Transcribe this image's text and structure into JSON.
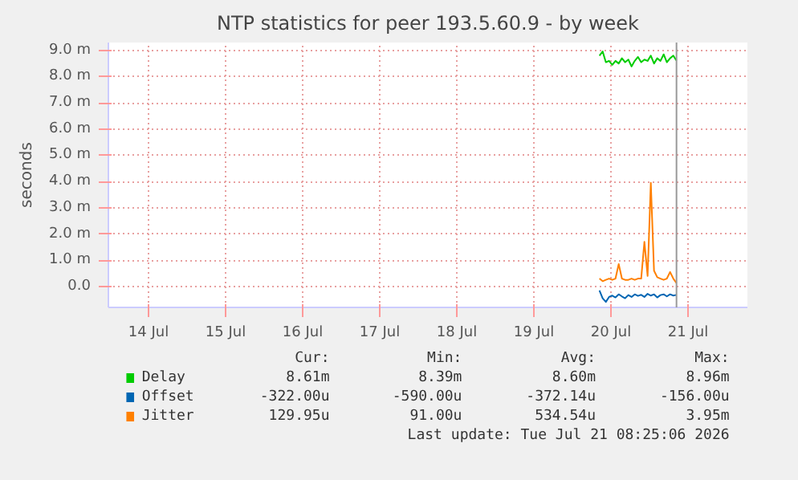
{
  "chart_data": {
    "type": "line",
    "title": "NTP statistics for peer 193.5.60.9 - by week",
    "ylabel": "seconds",
    "x": [
      "2026-07-20T08:25",
      "2026-07-20T09:25",
      "2026-07-20T10:25",
      "2026-07-20T11:25",
      "2026-07-20T12:25",
      "2026-07-20T13:25",
      "2026-07-20T14:25",
      "2026-07-20T15:25",
      "2026-07-20T16:25",
      "2026-07-20T17:25",
      "2026-07-20T18:25",
      "2026-07-20T19:25",
      "2026-07-20T20:25",
      "2026-07-20T21:25",
      "2026-07-20T22:25",
      "2026-07-20T23:25",
      "2026-07-21T00:25",
      "2026-07-21T01:25",
      "2026-07-21T02:25",
      "2026-07-21T03:25",
      "2026-07-21T04:25",
      "2026-07-21T05:25",
      "2026-07-21T06:25",
      "2026-07-21T07:25",
      "2026-07-21T08:25"
    ],
    "series": [
      {
        "name": "Delay",
        "color": "#00cc00",
        "values": [
          8.8,
          8.96,
          8.55,
          8.6,
          8.45,
          8.6,
          8.5,
          8.7,
          8.55,
          8.65,
          8.39,
          8.6,
          8.75,
          8.55,
          8.65,
          8.6,
          8.8,
          8.5,
          8.7,
          8.6,
          8.85,
          8.55,
          8.7,
          8.8,
          8.61
        ]
      },
      {
        "name": "Offset",
        "color": "#0066b3",
        "values": [
          -0.156,
          -0.45,
          -0.59,
          -0.4,
          -0.35,
          -0.42,
          -0.3,
          -0.38,
          -0.45,
          -0.33,
          -0.4,
          -0.3,
          -0.36,
          -0.32,
          -0.4,
          -0.28,
          -0.35,
          -0.3,
          -0.42,
          -0.33,
          -0.3,
          -0.38,
          -0.3,
          -0.35,
          -0.322
        ]
      },
      {
        "name": "Jitter",
        "color": "#ff8000",
        "values": [
          0.3,
          0.2,
          0.25,
          0.3,
          0.25,
          0.3,
          0.85,
          0.3,
          0.25,
          0.25,
          0.3,
          0.25,
          0.3,
          0.3,
          1.7,
          0.4,
          3.95,
          0.6,
          0.35,
          0.3,
          0.25,
          0.3,
          0.55,
          0.3,
          0.13
        ]
      }
    ],
    "xlim": [
      "2026-07-13T23:30",
      "2026-07-22T06:30"
    ],
    "xticks": [
      {
        "value": "2026-07-14T12:00",
        "label": "14 Jul"
      },
      {
        "value": "2026-07-15T12:00",
        "label": "15 Jul"
      },
      {
        "value": "2026-07-16T12:00",
        "label": "16 Jul"
      },
      {
        "value": "2026-07-17T12:00",
        "label": "17 Jul"
      },
      {
        "value": "2026-07-18T12:00",
        "label": "18 Jul"
      },
      {
        "value": "2026-07-19T12:00",
        "label": "19 Jul"
      },
      {
        "value": "2026-07-20T12:00",
        "label": "20 Jul"
      },
      {
        "value": "2026-07-21T12:00",
        "label": "21 Jul"
      }
    ],
    "ylim": [
      -0.8,
      9.3
    ],
    "yticks": [
      {
        "value": 0,
        "label": "0.0"
      },
      {
        "value": 1,
        "label": "1.0 m"
      },
      {
        "value": 2,
        "label": "2.0 m"
      },
      {
        "value": 3,
        "label": "3.0 m"
      },
      {
        "value": 4,
        "label": "4.0 m"
      },
      {
        "value": 5,
        "label": "5.0 m"
      },
      {
        "value": 6,
        "label": "6.0 m"
      },
      {
        "value": 7,
        "label": "7.0 m"
      },
      {
        "value": 8,
        "label": "8.0 m"
      },
      {
        "value": 9,
        "label": "9.0 m"
      }
    ],
    "grid": true,
    "legend": "bottom",
    "marker": "none",
    "line_style": "solid",
    "ref_lines": [
      {
        "axis": "x",
        "value": "2026-07-21T08:25",
        "label": null,
        "color": "#999999"
      }
    ],
    "annotations": [
      "Cur:",
      "Min:",
      "Avg:",
      "Max:",
      "8.61m",
      "8.39m",
      "8.60m",
      "8.96m",
      "-322.00u",
      "-590.00u",
      "-372.14u",
      "-156.00u",
      "129.95u",
      "91.00u",
      "534.54u",
      "3.95m",
      "Last update: Tue Jul 21 08:25:06 2026"
    ]
  }
}
